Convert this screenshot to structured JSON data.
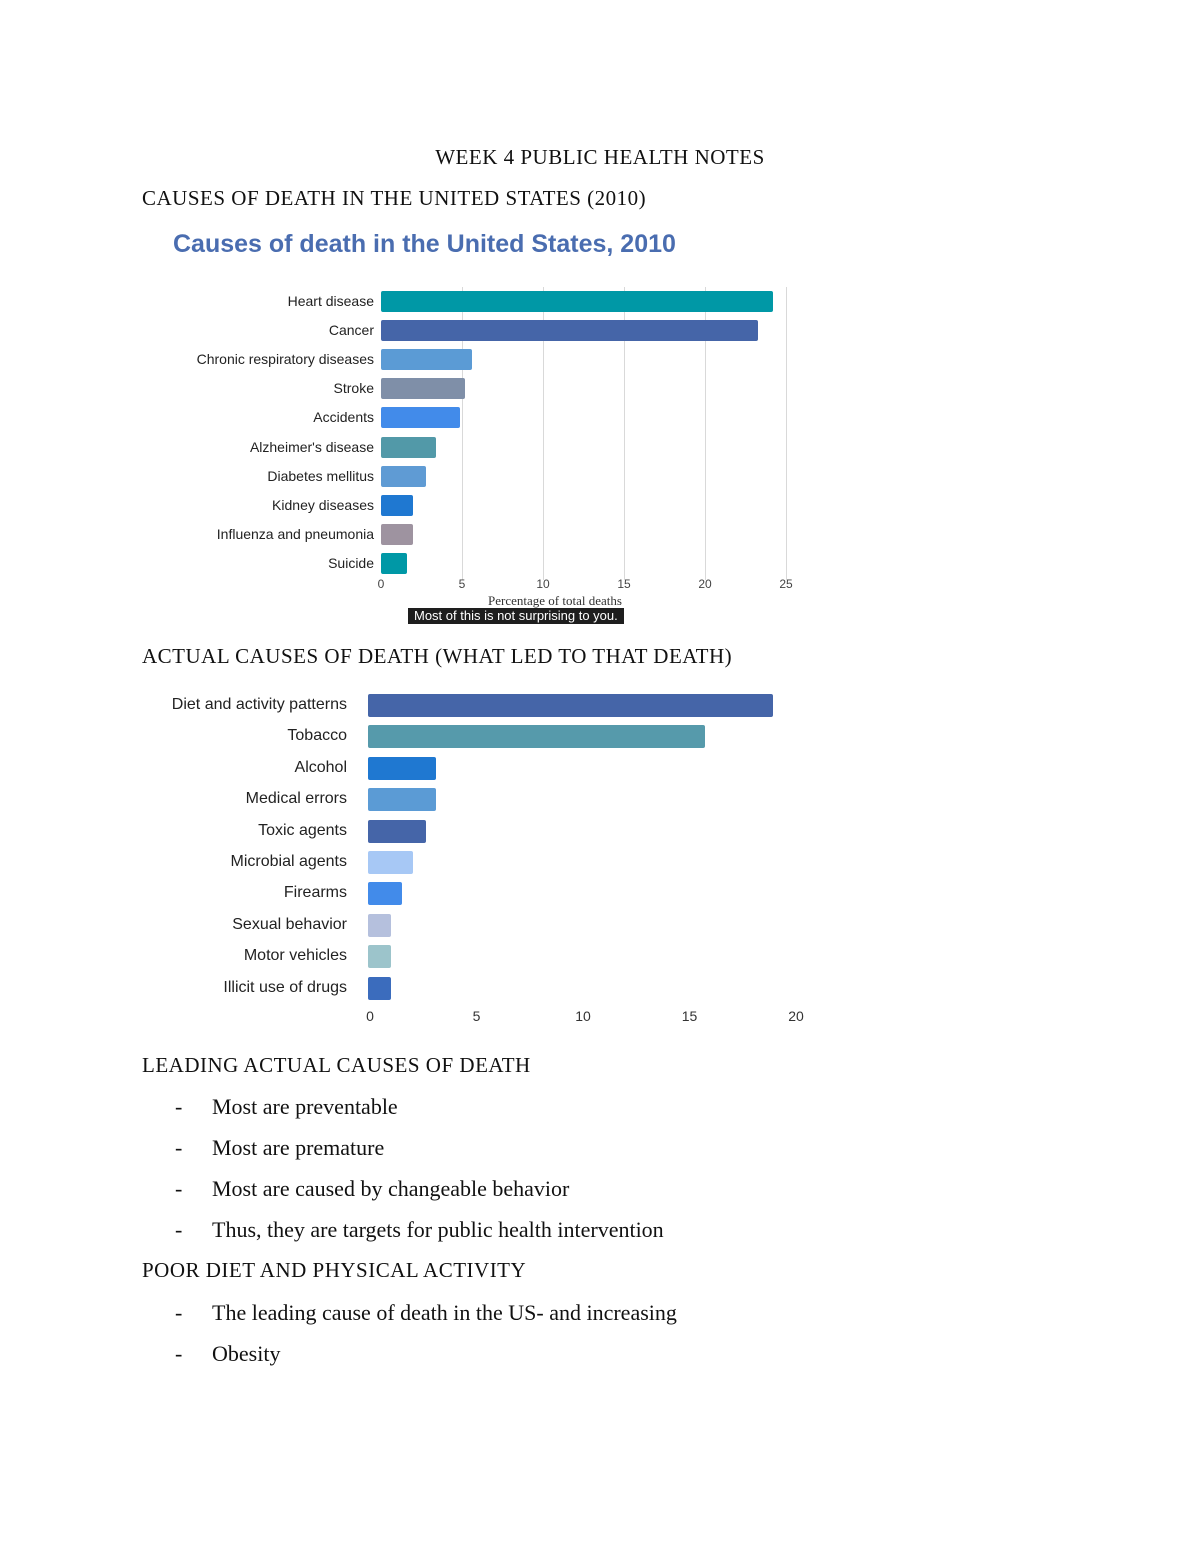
{
  "document": {
    "title": "WEEK 4 PUBLIC HEALTH NOTES",
    "sections": [
      {
        "heading": "CAUSES OF DEATH IN THE UNITED STATES (2010)"
      },
      {
        "heading": "ACTUAL CAUSES OF DEATH (WHAT LED TO THAT DEATH)"
      },
      {
        "heading": "LEADING ACTUAL CAUSES OF DEATH",
        "bullets": [
          "Most are preventable",
          "Most are premature",
          "Most are caused by changeable behavior",
          "Thus, they are targets for public health intervention"
        ]
      },
      {
        "heading": "POOR DIET AND PHYSICAL ACTIVITY",
        "bullets": [
          "The leading cause of death in the US- and increasing",
          "Obesity"
        ]
      }
    ],
    "bullet_marker": "-",
    "caption": "Most of this is not surprising to you."
  },
  "chart_data": [
    {
      "type": "bar",
      "orientation": "horizontal",
      "title": "Causes of death in the United States, 2010",
      "xlabel": "Percentage of total deaths",
      "ylabel": "",
      "xlim": [
        0,
        25
      ],
      "xticks": [
        0,
        5,
        10,
        15,
        20,
        25
      ],
      "grid": true,
      "categories": [
        "Heart disease",
        "Cancer",
        "Chronic respiratory diseases",
        "Stroke",
        "Accidents",
        "Alzheimer's disease",
        "Diabetes mellitus",
        "Kidney diseases",
        "Influenza and pneumonia",
        "Suicide"
      ],
      "values": [
        24.2,
        23.3,
        5.6,
        5.2,
        4.9,
        3.4,
        2.8,
        2.0,
        2.0,
        1.6
      ],
      "colors": [
        "#0098a6",
        "#4565a8",
        "#5b9bd5",
        "#7f8fa8",
        "#428bea",
        "#5299a8",
        "#5f9bd4",
        "#1f78d1",
        "#9e93a0",
        "#0098a6"
      ]
    },
    {
      "type": "bar",
      "orientation": "horizontal",
      "title": "",
      "xlabel": "",
      "ylabel": "",
      "xlim": [
        0,
        20
      ],
      "xticks": [
        0,
        5,
        10,
        15,
        20
      ],
      "grid": false,
      "categories": [
        "Diet and activity patterns",
        "Tobacco",
        "Alcohol",
        "Medical errors",
        "Toxic agents",
        "Microbial agents",
        "Firearms",
        "Sexual behavior",
        "Motor vehicles",
        "Illicit use of drugs"
      ],
      "values": [
        19.0,
        15.8,
        3.2,
        3.2,
        2.7,
        2.1,
        1.6,
        1.1,
        1.1,
        1.1
      ],
      "colors": [
        "#4565a8",
        "#569aab",
        "#1f78d1",
        "#5b9bd5",
        "#4565a8",
        "#a7c8f5",
        "#428bea",
        "#b5c0dd",
        "#9cc4cb",
        "#3b6cbd"
      ]
    }
  ]
}
